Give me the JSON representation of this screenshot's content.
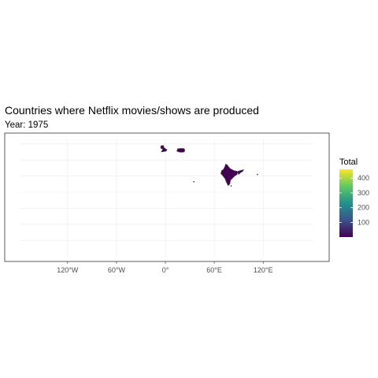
{
  "chart_data": {
    "type": "map",
    "title": "Countries where Netflix movies/shows are produced",
    "subtitle": "Year: 1975",
    "projection": "equirectangular",
    "x_ticks": [
      "120°W",
      "60°W",
      "0°",
      "60°E",
      "120°E"
    ],
    "x_tick_values": [
      -120,
      -60,
      0,
      60,
      120
    ],
    "grid": true,
    "legend": {
      "title": "Total",
      "ticks": [
        100,
        200,
        300,
        400
      ],
      "range": [
        1,
        460
      ],
      "palette": [
        "#440154",
        "#3b528b",
        "#21918c",
        "#5ec962",
        "#fde725"
      ],
      "placement": "right"
    },
    "regions": [
      {
        "country": "India",
        "total": 1
      },
      {
        "country": "United Kingdom",
        "total": 1
      },
      {
        "country": "Poland",
        "total": 1
      }
    ]
  }
}
